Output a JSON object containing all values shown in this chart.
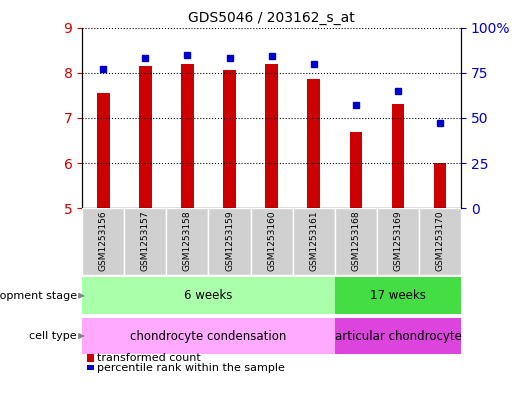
{
  "title": "GDS5046 / 203162_s_at",
  "samples": [
    "GSM1253156",
    "GSM1253157",
    "GSM1253158",
    "GSM1253159",
    "GSM1253160",
    "GSM1253161",
    "GSM1253168",
    "GSM1253169",
    "GSM1253170"
  ],
  "transformed_counts": [
    7.55,
    8.15,
    8.2,
    8.05,
    8.2,
    7.85,
    6.68,
    7.3,
    6.0
  ],
  "percentile_ranks": [
    77,
    83,
    85,
    83,
    84,
    80,
    57,
    65,
    47
  ],
  "ylim_left": [
    5,
    9
  ],
  "ylim_right": [
    0,
    100
  ],
  "yticks_left": [
    5,
    6,
    7,
    8,
    9
  ],
  "yticks_right": [
    0,
    25,
    50,
    75,
    100
  ],
  "bar_color": "#cc0000",
  "dot_color": "#0000cc",
  "bar_width": 0.3,
  "groups": [
    {
      "label": "6 weeks",
      "start": 0,
      "end": 5,
      "color": "#aaffaa"
    },
    {
      "label": "17 weeks",
      "start": 6,
      "end": 8,
      "color": "#44dd44"
    }
  ],
  "cell_types": [
    {
      "label": "chondrocyte condensation",
      "start": 0,
      "end": 5,
      "color": "#ffaaff"
    },
    {
      "label": "articular chondrocyte",
      "start": 6,
      "end": 8,
      "color": "#dd44dd"
    }
  ],
  "dev_stage_label": "development stage",
  "cell_type_label": "cell type",
  "legend_bar_label": "transformed count",
  "legend_dot_label": "percentile rank within the sample",
  "tick_label_color_left": "#cc0000",
  "tick_label_color_right": "#0000cc",
  "sample_box_color": "#d0d0d0",
  "sample_box_edge": "#aaaaaa"
}
